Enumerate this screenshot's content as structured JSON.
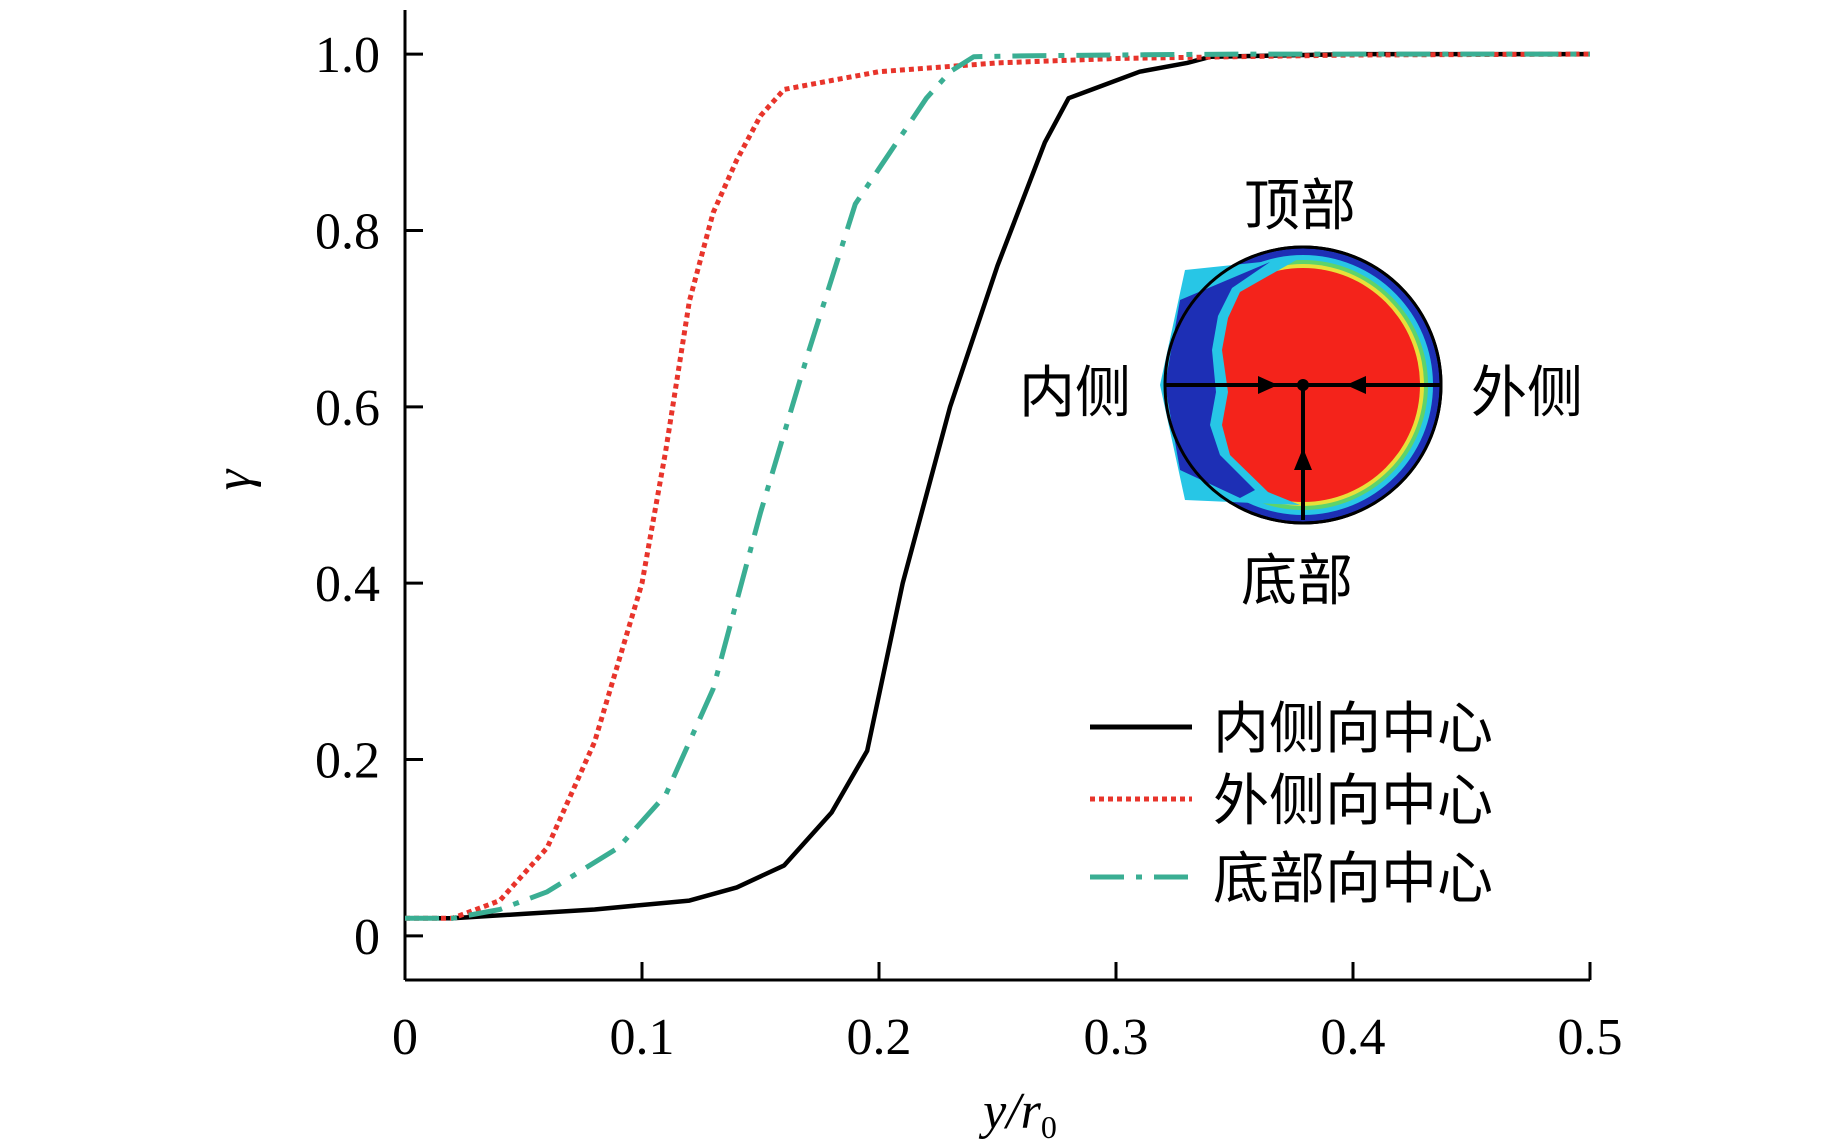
{
  "chart_data": {
    "type": "line",
    "xlabel": "y/r",
    "xlabel_subscript": "0",
    "ylabel": "γ",
    "xlim": [
      0,
      0.5
    ],
    "ylim": [
      -0.05,
      1.05
    ],
    "xticks": [
      0,
      0.1,
      0.2,
      0.3,
      0.4,
      0.5
    ],
    "xtick_labels": [
      "0",
      "0.1",
      "0.2",
      "0.3",
      "0.4",
      "0.5"
    ],
    "yticks": [
      0,
      0.2,
      0.4,
      0.6,
      0.8,
      1.0
    ],
    "ytick_labels": [
      "0",
      "0.2",
      "0.4",
      "0.6",
      "0.8",
      "1.0"
    ],
    "legend_position": "bottom-right",
    "series": [
      {
        "name": "内侧向中心",
        "style": "solid",
        "color": "#000000",
        "x": [
          0,
          0.02,
          0.05,
          0.08,
          0.1,
          0.12,
          0.14,
          0.16,
          0.18,
          0.195,
          0.21,
          0.23,
          0.25,
          0.27,
          0.28,
          0.29,
          0.31,
          0.33,
          0.34,
          0.36,
          0.4,
          0.45,
          0.5
        ],
        "y": [
          0.02,
          0.02,
          0.025,
          0.03,
          0.035,
          0.04,
          0.055,
          0.08,
          0.14,
          0.21,
          0.4,
          0.6,
          0.76,
          0.9,
          0.95,
          0.96,
          0.98,
          0.99,
          0.997,
          0.998,
          1.0,
          1.0,
          1.0
        ]
      },
      {
        "name": "外侧向中心",
        "style": "dotted",
        "color": "#e8342b",
        "x": [
          0,
          0.02,
          0.04,
          0.06,
          0.08,
          0.1,
          0.11,
          0.12,
          0.13,
          0.14,
          0.15,
          0.16,
          0.18,
          0.2,
          0.25,
          0.3,
          0.35,
          0.4,
          0.5
        ],
        "y": [
          0.02,
          0.02,
          0.04,
          0.1,
          0.22,
          0.4,
          0.55,
          0.72,
          0.82,
          0.88,
          0.93,
          0.96,
          0.97,
          0.98,
          0.99,
          0.995,
          0.997,
          0.999,
          1.0
        ]
      },
      {
        "name": "底部向中心",
        "style": "dashdot",
        "color": "#3aae93",
        "x": [
          0,
          0.02,
          0.04,
          0.06,
          0.09,
          0.11,
          0.13,
          0.15,
          0.17,
          0.19,
          0.2,
          0.21,
          0.22,
          0.23,
          0.24,
          0.26,
          0.3,
          0.35,
          0.4,
          0.5
        ],
        "y": [
          0.02,
          0.02,
          0.03,
          0.05,
          0.1,
          0.16,
          0.28,
          0.48,
          0.66,
          0.83,
          0.87,
          0.91,
          0.95,
          0.98,
          0.997,
          0.998,
          0.999,
          1.0,
          1.0,
          1.0
        ]
      }
    ],
    "inset": {
      "top_label": "顶部",
      "bottom_label": "底部",
      "left_label": "内侧",
      "right_label": "外侧",
      "colors": {
        "outer": "#1d2fb5",
        "ring_cyan": "#27c6e6",
        "ring_green": "#5fd36a",
        "ring_yellow": "#e8e03a",
        "core": "#f4231b"
      }
    }
  }
}
